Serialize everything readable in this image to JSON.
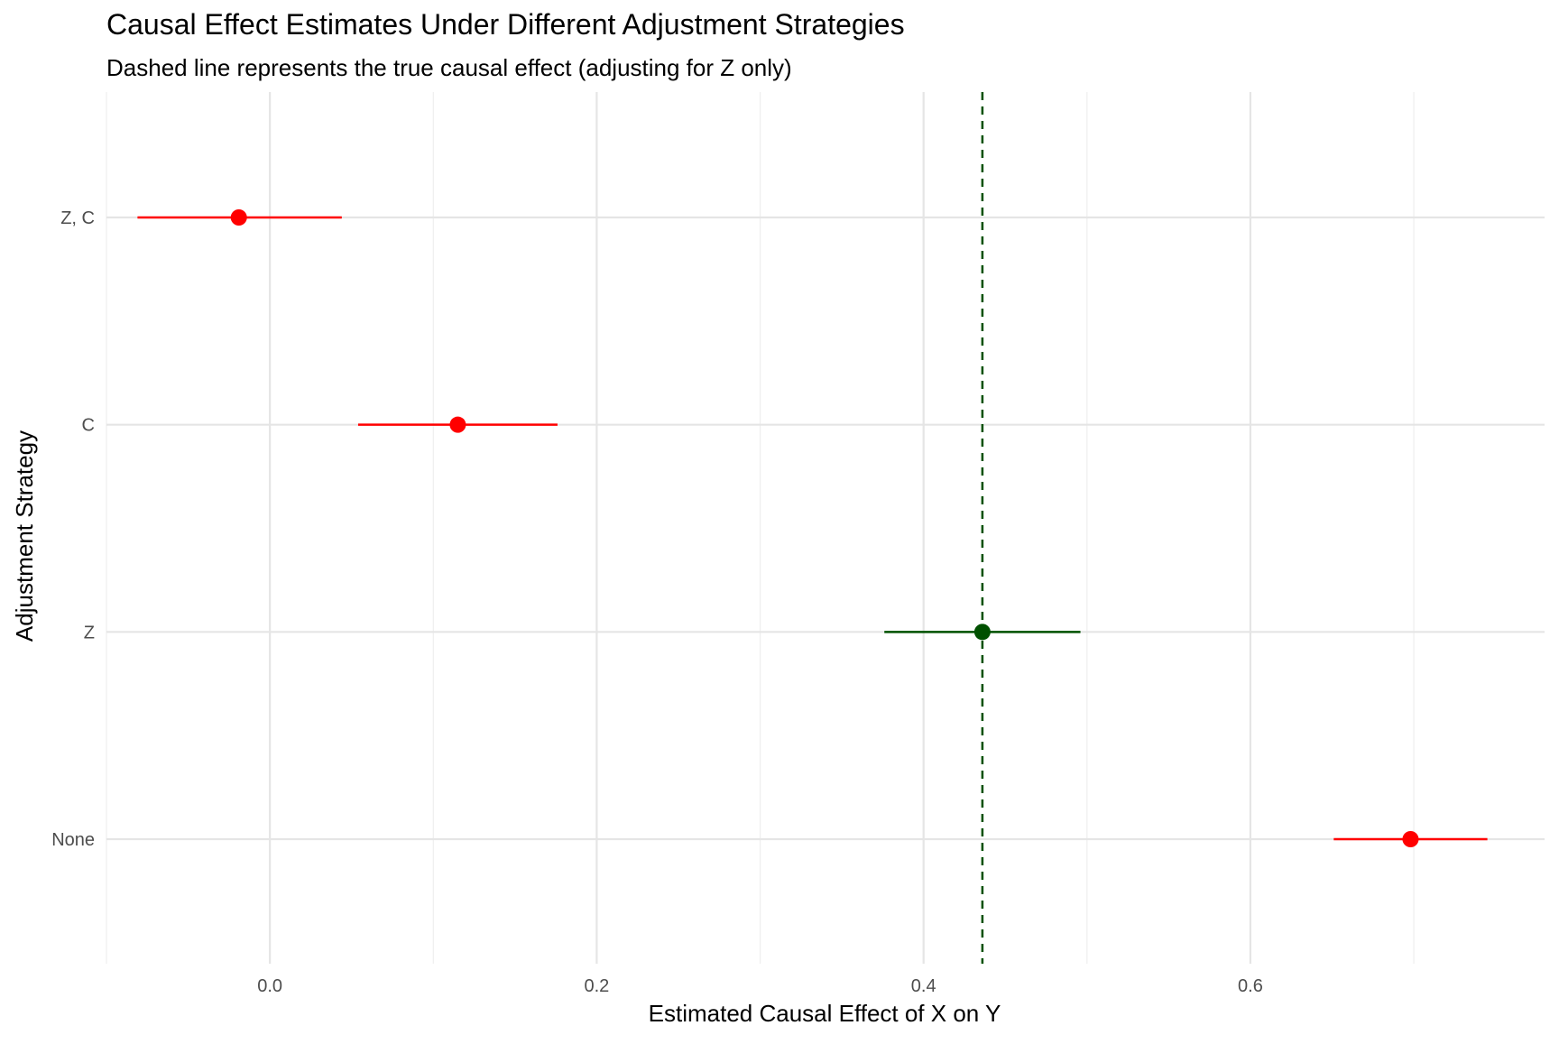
{
  "chart_data": {
    "type": "scatter",
    "title": "Causal Effect Estimates Under Different Adjustment Strategies",
    "subtitle": "Dashed line represents the true causal effect (adjusting for Z only)",
    "xlabel": "Estimated Causal Effect of X on Y",
    "ylabel": "Adjustment Strategy",
    "xlim": [
      -0.1,
      0.78
    ],
    "x_ticks": [
      0.0,
      0.2,
      0.4,
      0.6
    ],
    "x_tick_labels": [
      "0.0",
      "0.2",
      "0.4",
      "0.6"
    ],
    "categories": [
      "None",
      "Z",
      "C",
      "Z, C"
    ],
    "estimates": [
      0.698,
      0.436,
      0.115,
      -0.019
    ],
    "ci_lower": [
      0.651,
      0.376,
      0.054,
      -0.081
    ],
    "ci_upper": [
      0.745,
      0.496,
      0.176,
      0.044
    ],
    "point_colors": [
      "#ff0000",
      "#005000",
      "#ff0000",
      "#ff0000"
    ],
    "reference_line": {
      "x": 0.436,
      "style": "dashed",
      "color": "#005000"
    },
    "grid": true,
    "legend": "none"
  }
}
